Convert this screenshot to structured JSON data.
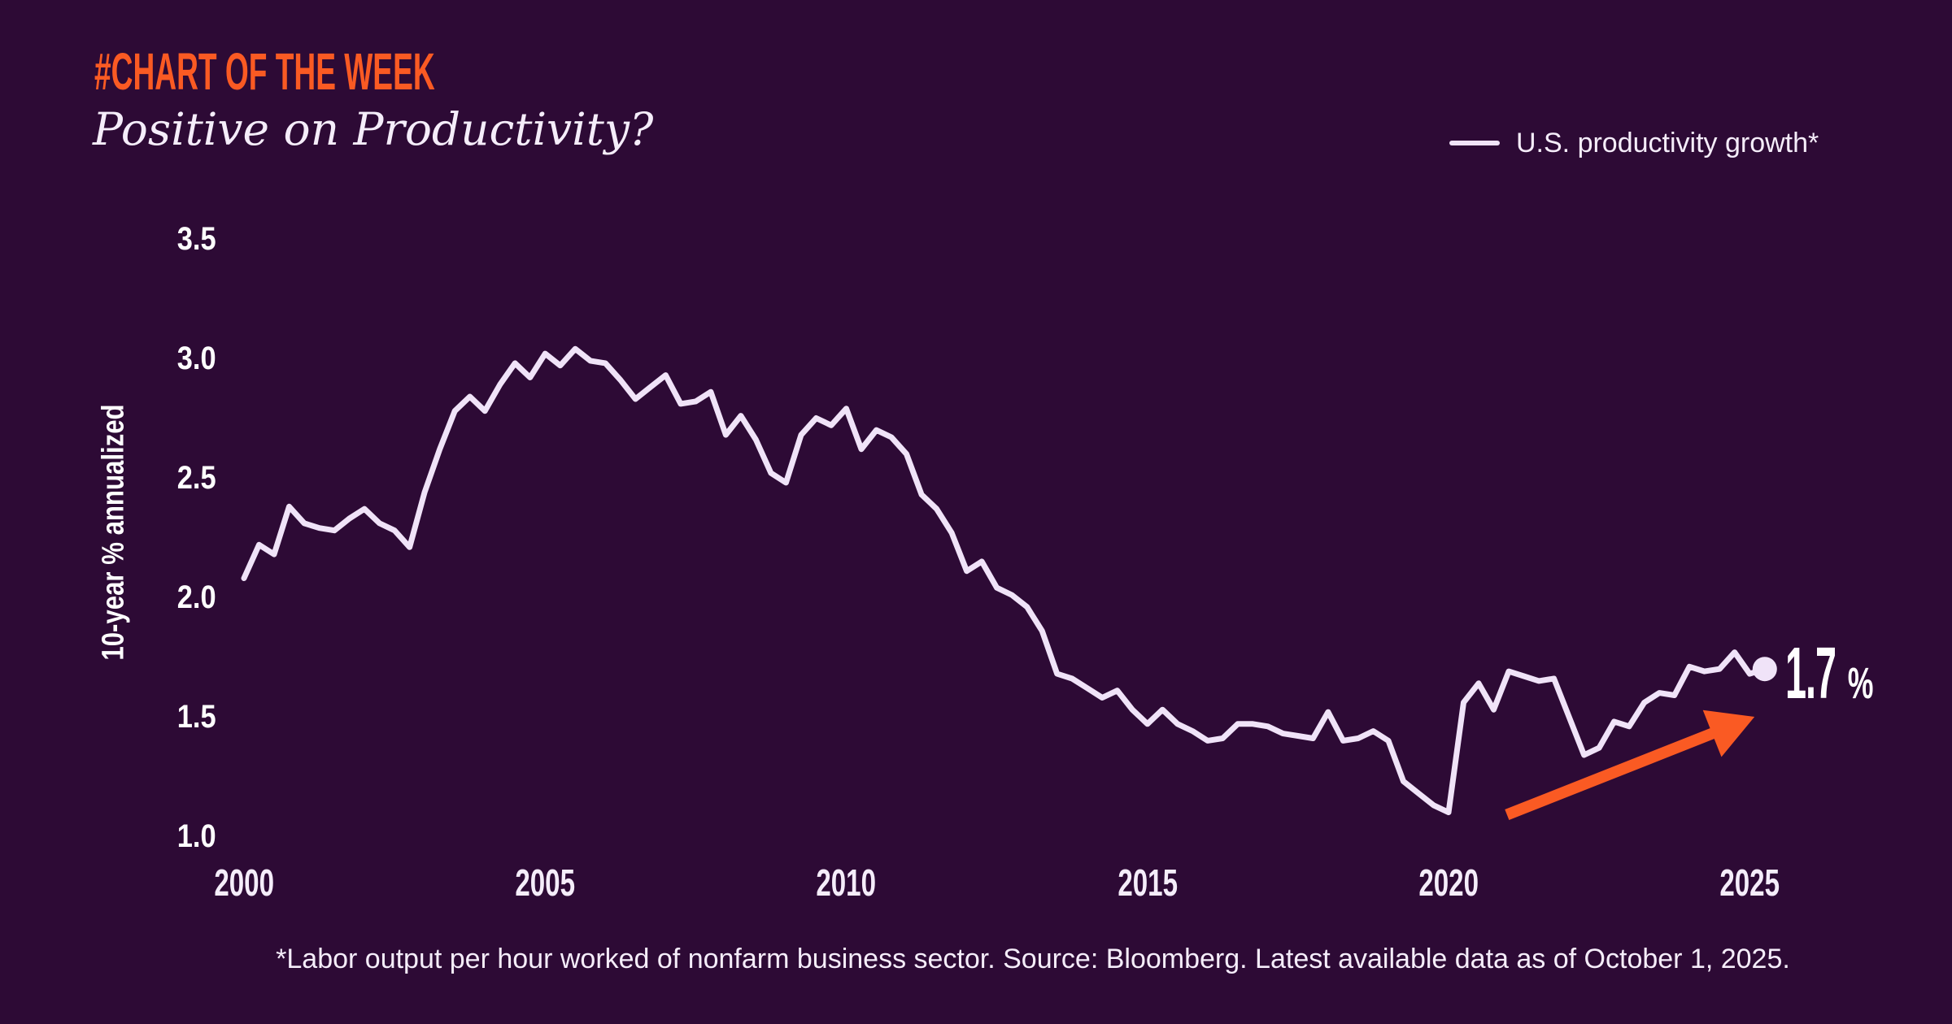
{
  "colors": {
    "background": "#2d0a35",
    "accent_orange": "#fa5a23",
    "line": "#f0e3f8",
    "text": "#f5edfa",
    "white": "#ffffff"
  },
  "kicker": {
    "text": "#CHART OF THE WEEK"
  },
  "title": {
    "text": "Positive on Productivity?"
  },
  "legend": {
    "label": "U.S. productivity growth*"
  },
  "callout": {
    "value": "1.7",
    "unit": "%"
  },
  "footnote": {
    "text": "*Labor output per hour worked of nonfarm business sector. Source: Bloomberg. Latest available data as of October 1, 2025."
  },
  "chart_data": {
    "type": "line",
    "title": "Positive on Productivity?",
    "xlabel": "",
    "ylabel": "10-year % annualized",
    "xlim": [
      2000,
      2025.6
    ],
    "ylim": [
      1.0,
      3.5
    ],
    "grid": false,
    "legend_position": "top-right",
    "xticks": [
      2000,
      2005,
      2010,
      2015,
      2020,
      2025
    ],
    "yticks": [
      3.5,
      3.0,
      2.5,
      2.0,
      1.5,
      1.0
    ],
    "ytick_labels": [
      "3.5",
      "3.0",
      "2.5",
      "2.0",
      "1.5",
      "1.0"
    ],
    "series": [
      {
        "name": "U.S. productivity growth*",
        "points": [
          [
            2000,
            2.08
          ],
          [
            2000.25,
            2.22
          ],
          [
            2000.5,
            2.18
          ],
          [
            2000.75,
            2.38
          ],
          [
            2001,
            2.31
          ],
          [
            2001.25,
            2.29
          ],
          [
            2001.5,
            2.28
          ],
          [
            2001.75,
            2.33
          ],
          [
            2002,
            2.37
          ],
          [
            2002.25,
            2.31
          ],
          [
            2002.5,
            2.28
          ],
          [
            2002.75,
            2.21
          ],
          [
            2003,
            2.44
          ],
          [
            2003.25,
            2.62
          ],
          [
            2003.5,
            2.78
          ],
          [
            2003.75,
            2.84
          ],
          [
            2004,
            2.78
          ],
          [
            2004.25,
            2.89
          ],
          [
            2004.5,
            2.98
          ],
          [
            2004.75,
            2.92
          ],
          [
            2005,
            3.02
          ],
          [
            2005.25,
            2.97
          ],
          [
            2005.5,
            3.04
          ],
          [
            2005.75,
            2.99
          ],
          [
            2006,
            2.98
          ],
          [
            2006.25,
            2.91
          ],
          [
            2006.5,
            2.83
          ],
          [
            2006.75,
            2.88
          ],
          [
            2007,
            2.93
          ],
          [
            2007.25,
            2.81
          ],
          [
            2007.5,
            2.82
          ],
          [
            2007.75,
            2.86
          ],
          [
            2008,
            2.68
          ],
          [
            2008.25,
            2.76
          ],
          [
            2008.5,
            2.66
          ],
          [
            2008.75,
            2.52
          ],
          [
            2009,
            2.48
          ],
          [
            2009.25,
            2.68
          ],
          [
            2009.5,
            2.75
          ],
          [
            2009.75,
            2.72
          ],
          [
            2010,
            2.79
          ],
          [
            2010.25,
            2.62
          ],
          [
            2010.5,
            2.7
          ],
          [
            2010.75,
            2.67
          ],
          [
            2011,
            2.6
          ],
          [
            2011.25,
            2.43
          ],
          [
            2011.5,
            2.37
          ],
          [
            2011.75,
            2.27
          ],
          [
            2012,
            2.11
          ],
          [
            2012.25,
            2.15
          ],
          [
            2012.5,
            2.04
          ],
          [
            2012.75,
            2.01
          ],
          [
            2013,
            1.96
          ],
          [
            2013.25,
            1.86
          ],
          [
            2013.5,
            1.68
          ],
          [
            2013.75,
            1.66
          ],
          [
            2014,
            1.62
          ],
          [
            2014.25,
            1.58
          ],
          [
            2014.5,
            1.61
          ],
          [
            2014.75,
            1.53
          ],
          [
            2015,
            1.47
          ],
          [
            2015.25,
            1.53
          ],
          [
            2015.5,
            1.47
          ],
          [
            2015.75,
            1.44
          ],
          [
            2016,
            1.4
          ],
          [
            2016.25,
            1.41
          ],
          [
            2016.5,
            1.47
          ],
          [
            2016.75,
            1.47
          ],
          [
            2017,
            1.46
          ],
          [
            2017.25,
            1.43
          ],
          [
            2017.5,
            1.42
          ],
          [
            2017.75,
            1.41
          ],
          [
            2018,
            1.52
          ],
          [
            2018.25,
            1.4
          ],
          [
            2018.5,
            1.41
          ],
          [
            2018.75,
            1.44
          ],
          [
            2019,
            1.4
          ],
          [
            2019.25,
            1.23
          ],
          [
            2019.5,
            1.18
          ],
          [
            2019.75,
            1.13
          ],
          [
            2020,
            1.1
          ],
          [
            2020.25,
            1.56
          ],
          [
            2020.5,
            1.64
          ],
          [
            2020.75,
            1.53
          ],
          [
            2021,
            1.69
          ],
          [
            2021.25,
            1.67
          ],
          [
            2021.5,
            1.65
          ],
          [
            2021.75,
            1.66
          ],
          [
            2022,
            1.5
          ],
          [
            2022.25,
            1.34
          ],
          [
            2022.5,
            1.37
          ],
          [
            2022.75,
            1.48
          ],
          [
            2023,
            1.46
          ],
          [
            2023.25,
            1.56
          ],
          [
            2023.5,
            1.6
          ],
          [
            2023.75,
            1.59
          ],
          [
            2024,
            1.71
          ],
          [
            2024.25,
            1.69
          ],
          [
            2024.5,
            1.7
          ],
          [
            2024.75,
            1.77
          ],
          [
            2025,
            1.68
          ],
          [
            2025.25,
            1.7
          ]
        ]
      }
    ],
    "end_marker": {
      "x": 2025.25,
      "y": 1.7,
      "label": "1.7%"
    },
    "trend_arrow": {
      "from": [
        2020.97,
        1.09
      ],
      "to": [
        2025.08,
        1.5
      ]
    }
  }
}
